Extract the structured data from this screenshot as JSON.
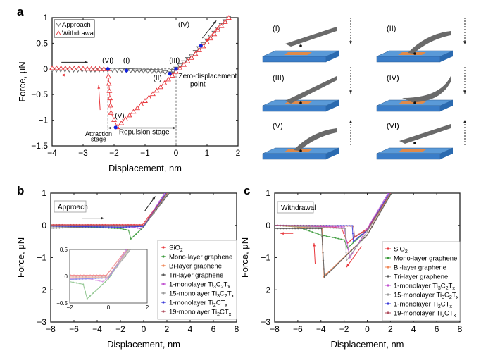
{
  "chart_data": [
    {
      "panel": "a",
      "type": "scatter",
      "xlabel": "Displacement, nm",
      "ylabel": "Force, μN",
      "xlim": [
        -4,
        2
      ],
      "ylim": [
        -1.5,
        1
      ],
      "xticks": [
        -4,
        -3,
        -2,
        -1,
        0,
        1,
        2
      ],
      "yticks": [
        1,
        0.5,
        0,
        -0.5,
        -1,
        -1.5
      ],
      "xtick_labels": [
        "−4",
        "−3",
        "−2",
        "−1",
        "0",
        "1",
        "2"
      ],
      "ytick_labels": [
        "1",
        "0.5",
        "0",
        "−0.5",
        "−1",
        "−1.5"
      ],
      "legend": {
        "position": "top-left",
        "entries": [
          {
            "name": "Approach",
            "color": "#555555",
            "marker": "triangle-down"
          },
          {
            "name": "Withdrawal",
            "color": "#e8383d",
            "marker": "triangle-up"
          }
        ]
      },
      "series": [
        {
          "name": "Approach",
          "color": "#555555",
          "x": [
            -4,
            -2.2,
            -1.6,
            -0.5,
            -0.2,
            0,
            0.5,
            1,
            1.7
          ],
          "y": [
            -0.02,
            -0.02,
            -0.03,
            -0.05,
            -0.09,
            0,
            0.25,
            0.55,
            1.0
          ]
        },
        {
          "name": "Withdrawal",
          "color": "#e8383d",
          "x": [
            1.7,
            1,
            0.5,
            0,
            -0.5,
            -1,
            -1.5,
            -1.9,
            -2.1,
            -2.2,
            -3,
            -4
          ],
          "y": [
            1.0,
            0.52,
            0.22,
            -0.05,
            -0.35,
            -0.62,
            -0.9,
            -1.13,
            -0.85,
            0,
            0.01,
            0.02
          ]
        }
      ],
      "key_points": [
        {
          "label": "(I)",
          "x": -1.6,
          "y": -0.03
        },
        {
          "label": "(II)",
          "x": -0.2,
          "y": -0.09
        },
        {
          "label": "(III)",
          "x": 0,
          "y": 0
        },
        {
          "label": "(IV)",
          "x": 0.8,
          "y": 0.45
        },
        {
          "label": "(V)",
          "x": -1.95,
          "y": -1.14
        },
        {
          "label": "(VI)",
          "x": -2.2,
          "y": 0
        }
      ],
      "annotations": [
        "(I)",
        "(II)",
        "(III)",
        "(IV)",
        "(V)",
        "(VI)",
        "Zero-displacement point",
        "Attraction stage",
        "Repulsion stage"
      ]
    },
    {
      "panel": "b",
      "type": "line",
      "title_box": "Approach",
      "xlabel": "Displacement, nm",
      "ylabel": "Force, μN",
      "xlim": [
        -8,
        8
      ],
      "ylim": [
        -3,
        1
      ],
      "xticks": [
        -8,
        -6,
        -4,
        -2,
        0,
        2,
        4,
        6,
        8
      ],
      "yticks": [
        1,
        0,
        -1,
        -2,
        -3
      ],
      "xtick_labels": [
        "−8",
        "−6",
        "−4",
        "−2",
        "0",
        "2",
        "4",
        "6",
        "8"
      ],
      "ytick_labels": [
        "1",
        "0",
        "−1",
        "−2",
        "−3"
      ],
      "legend_position": "bottom-right",
      "series": [
        {
          "name": "SiO2",
          "color": "#e8383d",
          "x": [
            -8,
            -0.1,
            2.0
          ],
          "y": [
            0.02,
            0.02,
            1.0
          ]
        },
        {
          "name": "Mono-layer graphene",
          "color": "#3a9a3a",
          "x": [
            -8,
            -2,
            -1.3,
            -1.1,
            0,
            2.0
          ],
          "y": [
            0,
            -0.1,
            -0.15,
            -0.42,
            -0.05,
            1.0
          ]
        },
        {
          "name": "Bi-layer graphene",
          "color": "#f08a5a",
          "x": [
            -8,
            0,
            2.1
          ],
          "y": [
            0,
            -0.02,
            1.0
          ]
        },
        {
          "name": "Tri-layer graphene",
          "color": "#555555",
          "x": [
            -8,
            -4,
            0,
            2.2
          ],
          "y": [
            -0.09,
            -0.04,
            -0.03,
            1.0
          ]
        },
        {
          "name": "1-monolayer Ti3C2Tx",
          "color": "#c050d0",
          "x": [
            -8,
            -1,
            -0.3,
            0,
            1.8
          ],
          "y": [
            -0.02,
            -0.05,
            -0.1,
            -0.03,
            1.0
          ]
        },
        {
          "name": "15-monolayer Ti3C2Tx",
          "color": "#999999",
          "x": [
            -8,
            0,
            2.1
          ],
          "y": [
            -0.05,
            -0.03,
            1.0
          ]
        },
        {
          "name": "1-monolayer Ti2CTx",
          "color": "#3a3ad8",
          "x": [
            -8,
            -2,
            0,
            1.9
          ],
          "y": [
            -0.02,
            -0.06,
            -0.03,
            1.0
          ]
        },
        {
          "name": "19-monolayer Ti2CTx",
          "color": "#b05060",
          "x": [
            -8,
            0,
            2.0
          ],
          "y": [
            0.01,
            0.0,
            1.0
          ]
        }
      ],
      "legend_labels": [
        {
          "base": "SiO",
          "sub1": "2",
          "mid": "",
          "sub2": "",
          "tail": "",
          "sub3": ""
        },
        {
          "base": "Mono-layer graphene",
          "sub1": "",
          "mid": "",
          "sub2": "",
          "tail": "",
          "sub3": ""
        },
        {
          "base": "Bi-layer graphene",
          "sub1": "",
          "mid": "",
          "sub2": "",
          "tail": "",
          "sub3": ""
        },
        {
          "base": "Tri-layer graphene",
          "sub1": "",
          "mid": "",
          "sub2": "",
          "tail": "",
          "sub3": ""
        },
        {
          "base": "1-monolayer Ti",
          "sub1": "3",
          "mid": "C",
          "sub2": "2",
          "tail": "T",
          "sub3": "x"
        },
        {
          "base": "15-monolayer Ti",
          "sub1": "3",
          "mid": "C",
          "sub2": "2",
          "tail": "T",
          "sub3": "x"
        },
        {
          "base": "1-monolayer Ti",
          "sub1": "2",
          "mid": "CT",
          "sub2": "x",
          "tail": "",
          "sub3": ""
        },
        {
          "base": "19-monolayer Ti",
          "sub1": "2",
          "mid": "CT",
          "sub2": "x",
          "tail": "",
          "sub3": ""
        }
      ],
      "inset": {
        "xlim": [
          -2,
          2
        ],
        "ylim": [
          -0.5,
          0.5
        ],
        "xticks": [
          -2,
          0,
          2
        ],
        "yticks": [
          0.5,
          0,
          -0.5
        ],
        "xtick_labels": [
          "−2",
          "0",
          "2"
        ],
        "ytick_labels": [
          "0.5",
          "0",
          "−0.5"
        ]
      }
    },
    {
      "panel": "c",
      "type": "line",
      "title_box": "Withdrawal",
      "xlabel": "Displacement, nm",
      "ylabel": "Force, μN",
      "xlim": [
        -8,
        8
      ],
      "ylim": [
        -3,
        1
      ],
      "xticks": [
        -8,
        -6,
        -4,
        -2,
        0,
        2,
        4,
        6,
        8
      ],
      "yticks": [
        1,
        0,
        -1,
        -2,
        -3
      ],
      "xtick_labels": [
        "−8",
        "−6",
        "−4",
        "−2",
        "0",
        "2",
        "4",
        "6",
        "8"
      ],
      "ytick_labels": [
        "1",
        "0",
        "−1",
        "−2",
        "−3"
      ],
      "legend_position": "bottom-right",
      "series": [
        {
          "name": "SiO2",
          "color": "#e8383d",
          "x": [
            2.0,
            0,
            -1.2,
            -1.7,
            -2.2,
            -3,
            -8
          ],
          "y": [
            1.0,
            -0.1,
            -0.4,
            -0.55,
            -0.1,
            -0.05,
            0
          ]
        },
        {
          "name": "Mono-layer graphene",
          "color": "#3a9a3a",
          "x": [
            2.1,
            0,
            -1.7,
            -2.0,
            -4,
            -6,
            -8
          ],
          "y": [
            1.0,
            -0.15,
            -0.7,
            -0.45,
            -0.3,
            -0.05,
            0
          ]
        },
        {
          "name": "Bi-layer graphene",
          "color": "#f08a5a",
          "x": [
            2.0,
            0,
            -3.8,
            -3.9,
            -8
          ],
          "y": [
            1.0,
            -0.3,
            -1.6,
            -0.1,
            0
          ]
        },
        {
          "name": "Tri-layer graphene",
          "color": "#555555",
          "x": [
            2.1,
            0,
            -3.7,
            -3.95,
            -8
          ],
          "y": [
            1.0,
            -0.3,
            -1.6,
            -0.1,
            -0.1
          ]
        },
        {
          "name": "1-monolayer Ti3C2Tx",
          "color": "#c050d0",
          "x": [
            1.8,
            0,
            -1.5,
            -1.9,
            -2.0,
            -8
          ],
          "y": [
            1.0,
            -0.1,
            -1.0,
            -0.25,
            -0.05,
            0
          ]
        },
        {
          "name": "15-monolayer Ti3C2Tx",
          "color": "#999999",
          "x": [
            2.0,
            0,
            -1.8,
            -1.9,
            -8
          ],
          "y": [
            1.0,
            -0.2,
            -1.1,
            -0.1,
            0
          ]
        },
        {
          "name": "1-monolayer Ti2CTx",
          "color": "#3a3ad8",
          "x": [
            1.9,
            0,
            -1.2,
            -1.3,
            -8
          ],
          "y": [
            1.0,
            -0.15,
            -0.5,
            -0.01,
            0
          ]
        },
        {
          "name": "19-monolayer Ti2CTx",
          "color": "#b05060",
          "x": [
            2.0,
            0,
            -1.1,
            -1.2,
            -8
          ],
          "y": [
            1.0,
            -0.15,
            -0.35,
            -0.02,
            0
          ]
        }
      ],
      "legend_labels": [
        {
          "base": "SiO",
          "sub1": "2",
          "mid": "",
          "sub2": "",
          "tail": "",
          "sub3": ""
        },
        {
          "base": "Mono-layer graphene",
          "sub1": "",
          "mid": "",
          "sub2": "",
          "tail": "",
          "sub3": ""
        },
        {
          "base": "Bi-layer graphene",
          "sub1": "",
          "mid": "",
          "sub2": "",
          "tail": "",
          "sub3": ""
        },
        {
          "base": "Tri-layer graphene",
          "sub1": "",
          "mid": "",
          "sub2": "",
          "tail": "",
          "sub3": ""
        },
        {
          "base": "1-monolayer Ti",
          "sub1": "3",
          "mid": "C",
          "sub2": "2",
          "tail": "T",
          "sub3": "x"
        },
        {
          "base": "15-monolayer Ti",
          "sub1": "3",
          "mid": "C",
          "sub2": "2",
          "tail": "T",
          "sub3": "x"
        },
        {
          "base": "1-monolayer Ti",
          "sub1": "2",
          "mid": "CT",
          "sub2": "x",
          "tail": "",
          "sub3": ""
        },
        {
          "base": "19-monolayer Ti",
          "sub1": "2",
          "mid": "CT",
          "sub2": "x",
          "tail": "",
          "sub3": ""
        }
      ]
    }
  ],
  "panel_labels": {
    "a": "a",
    "b": "b",
    "c": "c"
  },
  "panel_a_text": {
    "zero_point_line1": "Zero-displacement",
    "zero_point_line2": "point",
    "attraction_line1": "Attraction",
    "attraction_line2": "stage",
    "repulsion": "Repulsion stage",
    "legend_approach": "Approach",
    "legend_withdrawal": "Withdrawal"
  },
  "schematic": {
    "stages": [
      {
        "label": "(I)",
        "direction": "down",
        "bend": "none",
        "contact": false
      },
      {
        "label": "(II)",
        "direction": "down",
        "bend": "down",
        "contact": true
      },
      {
        "label": "(III)",
        "direction": "down",
        "bend": "none",
        "contact": true
      },
      {
        "label": "(IV)",
        "direction": "down",
        "bend": "up",
        "contact": true
      },
      {
        "label": "(V)",
        "direction": "up",
        "bend": "down",
        "contact": true
      },
      {
        "label": "(VI)",
        "direction": "up",
        "bend": "none",
        "contact": false
      }
    ],
    "colors": {
      "substrate": "#3a7dc8",
      "sample": "#e08a4a",
      "cantilever": "#6a6a6a"
    }
  }
}
